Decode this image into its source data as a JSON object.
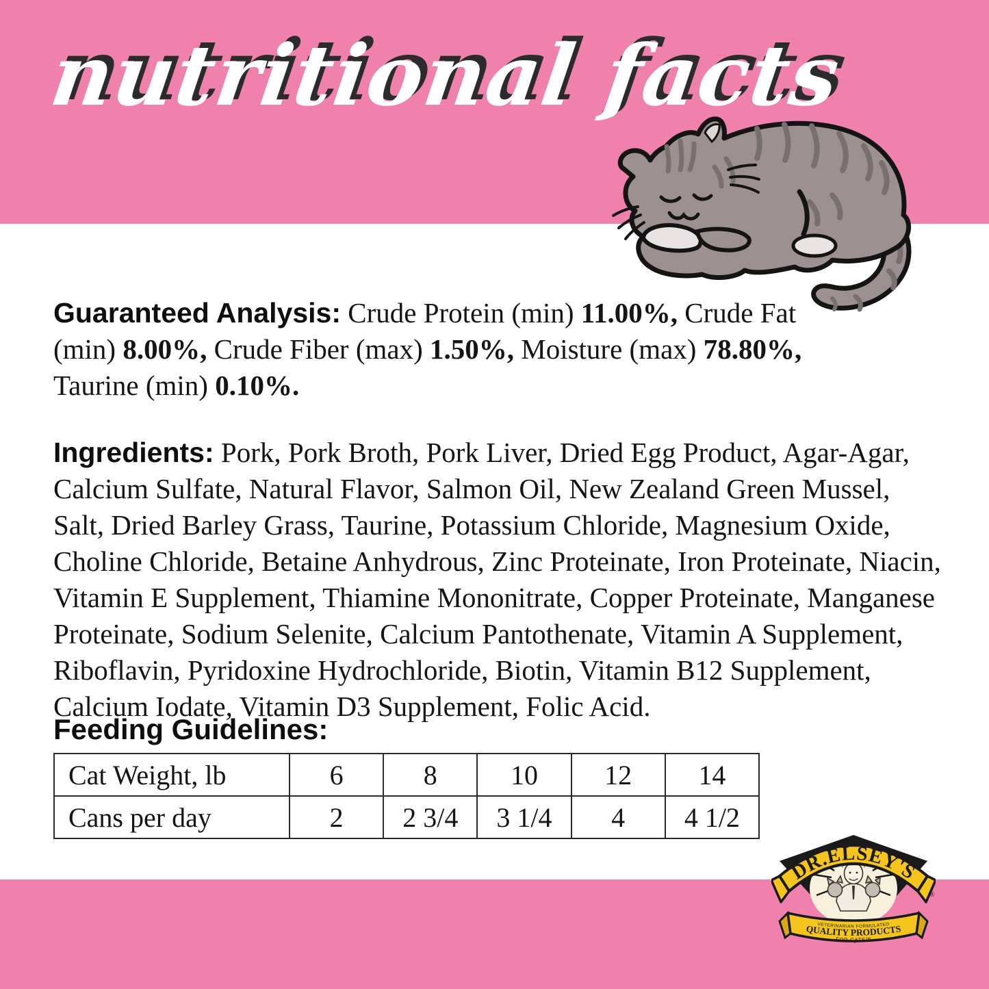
{
  "title": "nutritional facts",
  "guaranteed_analysis": {
    "label": "Guaranteed Analysis:",
    "segments": [
      {
        "text": " Crude Protein (min) ",
        "bold": false
      },
      {
        "text": "11.00%,",
        "bold": true
      },
      {
        "text": " Crude Fat (min) ",
        "bold": false
      },
      {
        "text": "8.00%,",
        "bold": true
      },
      {
        "text": " Crude Fiber (max) ",
        "bold": false
      },
      {
        "text": "1.50%,",
        "bold": true
      },
      {
        "text": " Moisture (max) ",
        "bold": false
      },
      {
        "text": "78.80%,",
        "bold": true
      },
      {
        "text": " Taurine (min) ",
        "bold": false
      },
      {
        "text": "0.10%.",
        "bold": true
      }
    ]
  },
  "ingredients": {
    "label": "Ingredients:",
    "text": " Pork, Pork Broth, Pork Liver, Dried Egg Product, Agar-Agar, Calcium Sulfate, Natural Flavor, Salmon Oil, New Zealand Green Mussel, Salt, Dried Barley Grass, Taurine, Potassium Chloride, Magnesium Oxide, Choline Chloride, Betaine Anhydrous, Zinc Proteinate, Iron Proteinate, Niacin, Vitamin E Supplement, Thiamine Mononitrate, Copper Proteinate, Manganese Proteinate, Sodium Selenite, Calcium Pantothenate, Vitamin A Supplement, Riboflavin, Pyridoxine Hydrochloride, Biotin, Vitamin B12 Supplement, Calcium Iodate, Vitamin D3 Supplement, Folic Acid."
  },
  "feeding": {
    "label": "Feeding Guidelines:",
    "table": {
      "rows": [
        {
          "label": "Cat Weight, lb",
          "values": [
            "6",
            "8",
            "10",
            "12",
            "14"
          ]
        },
        {
          "label": "Cans per day",
          "values": [
            "2",
            "2 3/4",
            "3 1/4",
            "4",
            "4 1/2"
          ]
        }
      ]
    }
  },
  "logo": {
    "brand": "DR.ELSEY'S",
    "registered": "®",
    "ribbon_line_small": "VETERINARIAN FORMULATED",
    "ribbon_line_main": "QUALITY PRODUCTS",
    "ribbon_line_sub": "FOR CATS™"
  },
  "colors": {
    "band_pink": "#F080AC",
    "logo_yellow": "#F5C51E",
    "logo_yellow_dark": "#D9A913",
    "logo_ivory": "#F7F0DC",
    "title_shadow": "#2B2B2B",
    "text_black": "#151515",
    "cat_gray": "#9C9190",
    "cat_stripe": "#77706E",
    "cat_light": "#E9E4E3"
  }
}
